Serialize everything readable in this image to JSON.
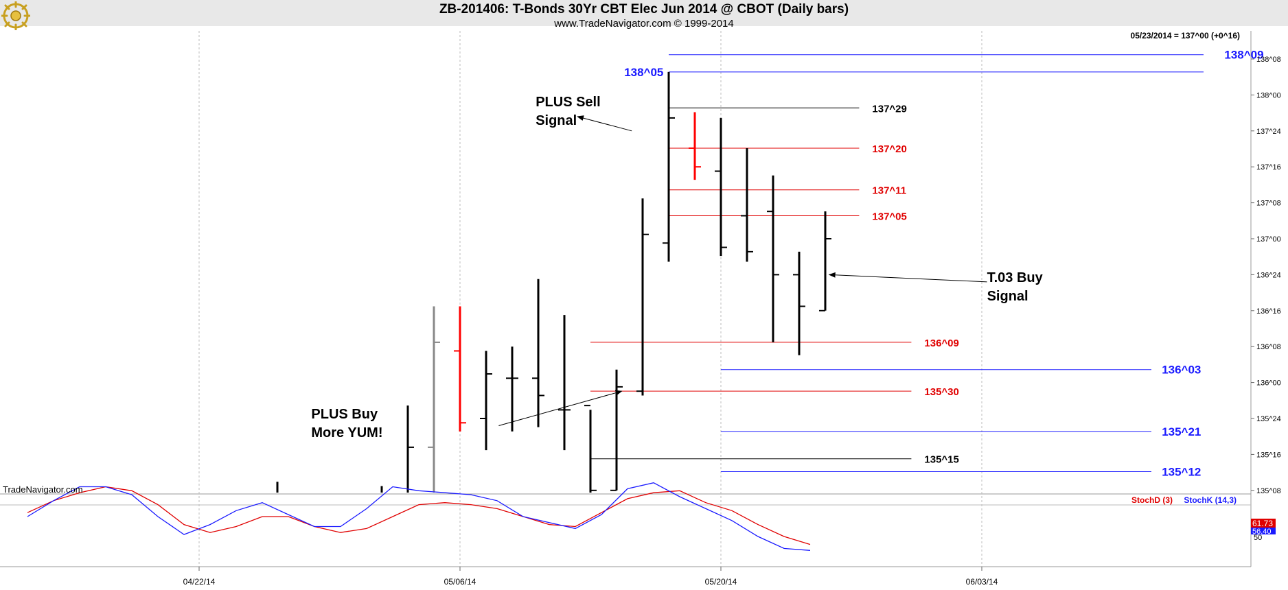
{
  "header": {
    "title": "ZB-201406:  T-Bonds 30Yr CBT Elec Jun 2014 @ CBOT  (Daily bars)",
    "subtitle": "www.TradeNavigator.com © 1999-2014",
    "quote": "05/23/2014 = 137^00 (+0^16)",
    "watermark": "TradeNavigator.com"
  },
  "chart_data": {
    "type": "bar",
    "subtype": "ohlc",
    "price_axis": {
      "ticks": [
        "138^08",
        "138^00",
        "137^24",
        "137^16",
        "137^08",
        "137^00",
        "136^24",
        "136^16",
        "136^08",
        "136^00",
        "135^24",
        "135^16",
        "135^08"
      ],
      "values": [
        138.25,
        138.0,
        137.75,
        137.5,
        137.25,
        137.0,
        136.75,
        136.5,
        136.25,
        136.0,
        135.75,
        135.5,
        135.25
      ],
      "range": [
        135.22,
        138.44
      ]
    },
    "date_axis": {
      "labels": [
        "04/22/14",
        "05/06/14",
        "05/20/14",
        "06/03/14"
      ],
      "label_days": [
        10,
        20,
        30,
        40
      ]
    },
    "bars": [
      {
        "d": 13,
        "h": 135.31,
        "l": 135.22,
        "o": null,
        "c": null,
        "color": "#000000"
      },
      {
        "d": 17,
        "h": 135.28,
        "l": 135.22,
        "o": null,
        "c": null,
        "color": "#000000"
      },
      {
        "d": 18,
        "h": 135.84,
        "l": 135.22,
        "o": null,
        "c": 135.55,
        "color": "#000000"
      },
      {
        "d": 19,
        "h": 136.53,
        "l": 135.22,
        "o": 135.55,
        "c": 136.28,
        "color": "#888888"
      },
      {
        "d": 20,
        "h": 136.53,
        "l": 135.66,
        "o": 136.22,
        "c": 135.72,
        "color": "#ff0000"
      },
      {
        "d": 21,
        "h": 136.22,
        "l": 135.53,
        "o": 135.75,
        "c": 136.06,
        "color": "#000000"
      },
      {
        "d": 22,
        "h": 136.25,
        "l": 135.66,
        "o": 136.03,
        "c": 136.03,
        "color": "#000000"
      },
      {
        "d": 23,
        "h": 136.72,
        "l": 135.69,
        "o": 136.03,
        "c": 135.91,
        "color": "#000000"
      },
      {
        "d": 24,
        "h": 136.47,
        "l": 135.53,
        "o": 135.81,
        "c": 135.81,
        "color": "#000000"
      },
      {
        "d": 25,
        "h": 135.81,
        "l": 135.22,
        "o": 135.84,
        "c": 135.25,
        "color": "#000000"
      },
      {
        "d": 26,
        "h": 136.09,
        "l": 135.25,
        "o": 135.25,
        "c": 135.97,
        "color": "#000000"
      },
      {
        "d": 27,
        "h": 137.28,
        "l": 135.91,
        "o": 135.94,
        "c": 137.03,
        "color": "#000000"
      },
      {
        "d": 28,
        "h": 138.16,
        "l": 136.84,
        "o": 136.97,
        "c": 137.84,
        "color": "#000000"
      },
      {
        "d": 29,
        "h": 137.88,
        "l": 137.41,
        "o": 137.63,
        "c": 137.5,
        "color": "#ff0000"
      },
      {
        "d": 30,
        "h": 137.84,
        "l": 136.88,
        "o": 137.47,
        "c": 136.94,
        "color": "#000000"
      },
      {
        "d": 31,
        "h": 137.63,
        "l": 136.84,
        "o": 137.16,
        "c": 136.91,
        "color": "#000000"
      },
      {
        "d": 32,
        "h": 137.44,
        "l": 136.28,
        "o": 137.19,
        "c": 136.75,
        "color": "#000000"
      },
      {
        "d": 33,
        "h": 136.91,
        "l": 136.19,
        "o": 136.75,
        "c": 136.53,
        "color": "#000000"
      },
      {
        "d": 34,
        "h": 137.19,
        "l": 136.5,
        "o": 136.5,
        "c": 137.0,
        "color": "#000000"
      }
    ],
    "levels": [
      {
        "label": "138^09",
        "price": 138.28,
        "x0": 28,
        "x1": 48.5,
        "color": "#1a1aff",
        "label_x": 49.3,
        "size": 17
      },
      {
        "label": "138^05",
        "price": 138.16,
        "x0": 28,
        "x1": 48.5,
        "color": "#1a1aff",
        "label_x": 27.8,
        "anchor": "end",
        "size": 17
      },
      {
        "label": "137^29",
        "price": 137.91,
        "x0": 28,
        "x1": 35.3,
        "color": "#000000",
        "label_x": 35.8,
        "size": 15
      },
      {
        "label": "137^20",
        "price": 137.63,
        "x0": 28,
        "x1": 35.3,
        "color": "#e00000",
        "label_x": 35.8,
        "size": 15
      },
      {
        "label": "137^11",
        "price": 137.34,
        "x0": 28,
        "x1": 35.3,
        "color": "#e00000",
        "label_x": 35.8,
        "size": 15
      },
      {
        "label": "137^05",
        "price": 137.16,
        "x0": 28,
        "x1": 35.3,
        "color": "#e00000",
        "label_x": 35.8,
        "size": 15
      },
      {
        "label": "136^09",
        "price": 136.28,
        "x0": 25,
        "x1": 37.3,
        "color": "#e00000",
        "label_x": 37.8,
        "size": 15
      },
      {
        "label": "136^03",
        "price": 136.09,
        "x0": 30,
        "x1": 46.5,
        "color": "#1a1aff",
        "label_x": 46.9,
        "size": 17
      },
      {
        "label": "135^30",
        "price": 135.94,
        "x0": 25,
        "x1": 37.3,
        "color": "#e00000",
        "label_x": 37.8,
        "size": 15
      },
      {
        "label": "135^21",
        "price": 135.66,
        "x0": 30,
        "x1": 46.5,
        "color": "#1a1aff",
        "label_x": 46.9,
        "size": 17
      },
      {
        "label": "135^15",
        "price": 135.47,
        "x0": 25,
        "x1": 37.3,
        "color": "#000000",
        "label_x": 37.8,
        "size": 15
      },
      {
        "label": "135^12",
        "price": 135.38,
        "x0": 30,
        "x1": 46.5,
        "color": "#1a1aff",
        "label_x": 46.9,
        "size": 17
      }
    ],
    "annotations": [
      {
        "lines": [
          "PLUS Sell",
          "Signal"
        ],
        "d": 24.5,
        "p": 137.85,
        "tx": 22.9,
        "ty": 137.92,
        "ax": 22.9,
        "ay": 137.75,
        "size": 20
      },
      {
        "lines": [
          "PLUS Buy",
          "More YUM!"
        ],
        "d": 26.2,
        "p": 135.94,
        "tx": 14.3,
        "ty": 135.75,
        "ax": 17.8,
        "ay": 135.7,
        "size": 20
      },
      {
        "lines": [
          "T.03 Buy",
          "Signal"
        ],
        "d": 34.15,
        "p": 136.75,
        "tx": 40.2,
        "ty": 136.7,
        "ax": 40.2,
        "ay": 136.7,
        "size": 20
      }
    ],
    "stochastic": {
      "legend": [
        {
          "name": "StochD (3)",
          "color": "#e00000"
        },
        {
          "name": "StochK (14,3)",
          "color": "#1a1aff"
        }
      ],
      "d_values": [
        62,
        68,
        72,
        75,
        73,
        66,
        56,
        52,
        55,
        60,
        60,
        55,
        52,
        54,
        60,
        66,
        67,
        66,
        64,
        60,
        56,
        55,
        62,
        69,
        72,
        73,
        67,
        63,
        56,
        50,
        46
      ],
      "k_values": [
        60,
        68,
        75,
        75,
        71,
        60,
        51,
        56,
        63,
        67,
        61,
        55,
        55,
        64,
        75,
        73,
        72,
        71,
        68,
        60,
        57,
        54,
        61,
        74,
        77,
        70,
        64,
        58,
        50,
        44,
        43
      ],
      "start_day": 1,
      "readout_d": "61.73",
      "readout_k": "56.40",
      "axis_label": "50"
    }
  }
}
